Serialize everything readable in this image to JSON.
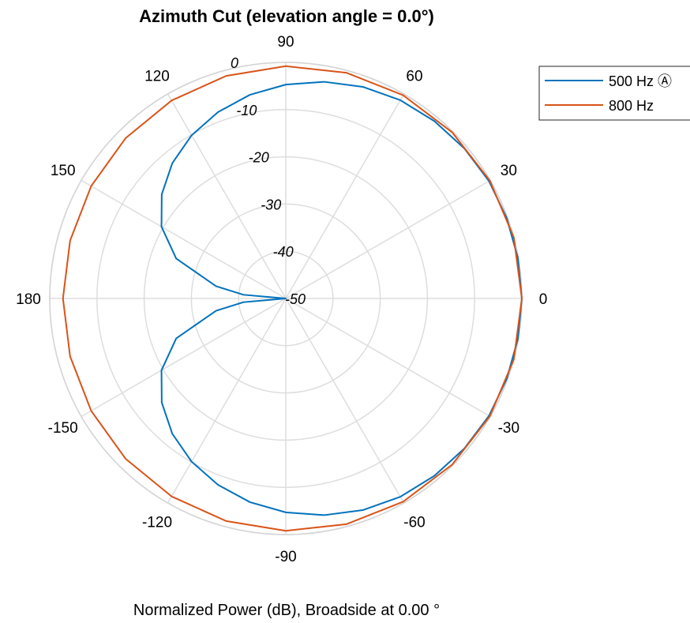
{
  "chart_data": {
    "type": "line",
    "subtype": "polar",
    "title": "Azimuth Cut (elevation angle = 0.0°)",
    "caption": "Normalized Power (dB), Broadside at 0.00 °",
    "angle_unit": "degrees",
    "angular_ticks": [
      {
        "value": 0,
        "label": "0"
      },
      {
        "value": 30,
        "label": "30"
      },
      {
        "value": 60,
        "label": "60"
      },
      {
        "value": 90,
        "label": "90"
      },
      {
        "value": 120,
        "label": "120"
      },
      {
        "value": 150,
        "label": "150"
      },
      {
        "value": 180,
        "label": "180"
      },
      {
        "value": -150,
        "label": "-150"
      },
      {
        "value": -120,
        "label": "-120"
      },
      {
        "value": -90,
        "label": "-90"
      },
      {
        "value": -60,
        "label": "-60"
      },
      {
        "value": -30,
        "label": "-30"
      }
    ],
    "radial_ticks": [
      {
        "value": 0,
        "label": "0"
      },
      {
        "value": -10,
        "label": "-10"
      },
      {
        "value": -20,
        "label": "-20"
      },
      {
        "value": -30,
        "label": "-30"
      },
      {
        "value": -40,
        "label": "-40"
      },
      {
        "value": -50,
        "label": "-50"
      }
    ],
    "rlim": [
      -50,
      0
    ],
    "grid": true,
    "legend_position": "top-right",
    "series": [
      {
        "name": "500 Hz",
        "legend_label": "500 Hz Ⓐ",
        "color": "#0072BD",
        "angles": [
          0,
          10,
          20,
          30,
          40,
          50,
          60,
          70,
          80,
          90,
          100,
          110,
          120,
          130,
          140,
          150,
          160,
          170,
          175,
          180,
          -175,
          -170,
          -160,
          -150,
          -140,
          -130,
          -120,
          -110,
          -100,
          -90,
          -80,
          -70,
          -60,
          -50,
          -40,
          -30,
          -20,
          -10
        ],
        "values": [
          0,
          -0.1,
          -0.2,
          -0.3,
          -0.6,
          -1.0,
          -1.5,
          -2.3,
          -3.4,
          -4.7,
          -6.2,
          -8.0,
          -10.1,
          -12.6,
          -15.7,
          -19.6,
          -25.3,
          -35.0,
          -41.0,
          -50,
          -41.0,
          -35.0,
          -25.3,
          -19.6,
          -15.7,
          -12.6,
          -10.1,
          -8.0,
          -6.2,
          -4.7,
          -3.4,
          -2.3,
          -1.5,
          -1.0,
          -0.6,
          -0.3,
          -0.2,
          -0.1
        ]
      },
      {
        "name": "800 Hz",
        "legend_label": "800 Hz",
        "color": "#D95319",
        "angles": [
          0,
          15,
          30,
          45,
          60,
          75,
          90,
          105,
          120,
          135,
          150,
          165,
          180,
          -165,
          -150,
          -135,
          -120,
          -105,
          -90,
          -75,
          -60,
          -45,
          -30,
          -15
        ],
        "values": [
          0,
          0,
          -0.1,
          -0.2,
          -0.3,
          -0.5,
          -0.8,
          -1.2,
          -1.6,
          -2.0,
          -2.4,
          -2.7,
          -2.8,
          -2.7,
          -2.4,
          -2.0,
          -1.6,
          -1.2,
          -0.8,
          -0.5,
          -0.3,
          -0.2,
          -0.1,
          0
        ]
      }
    ]
  }
}
